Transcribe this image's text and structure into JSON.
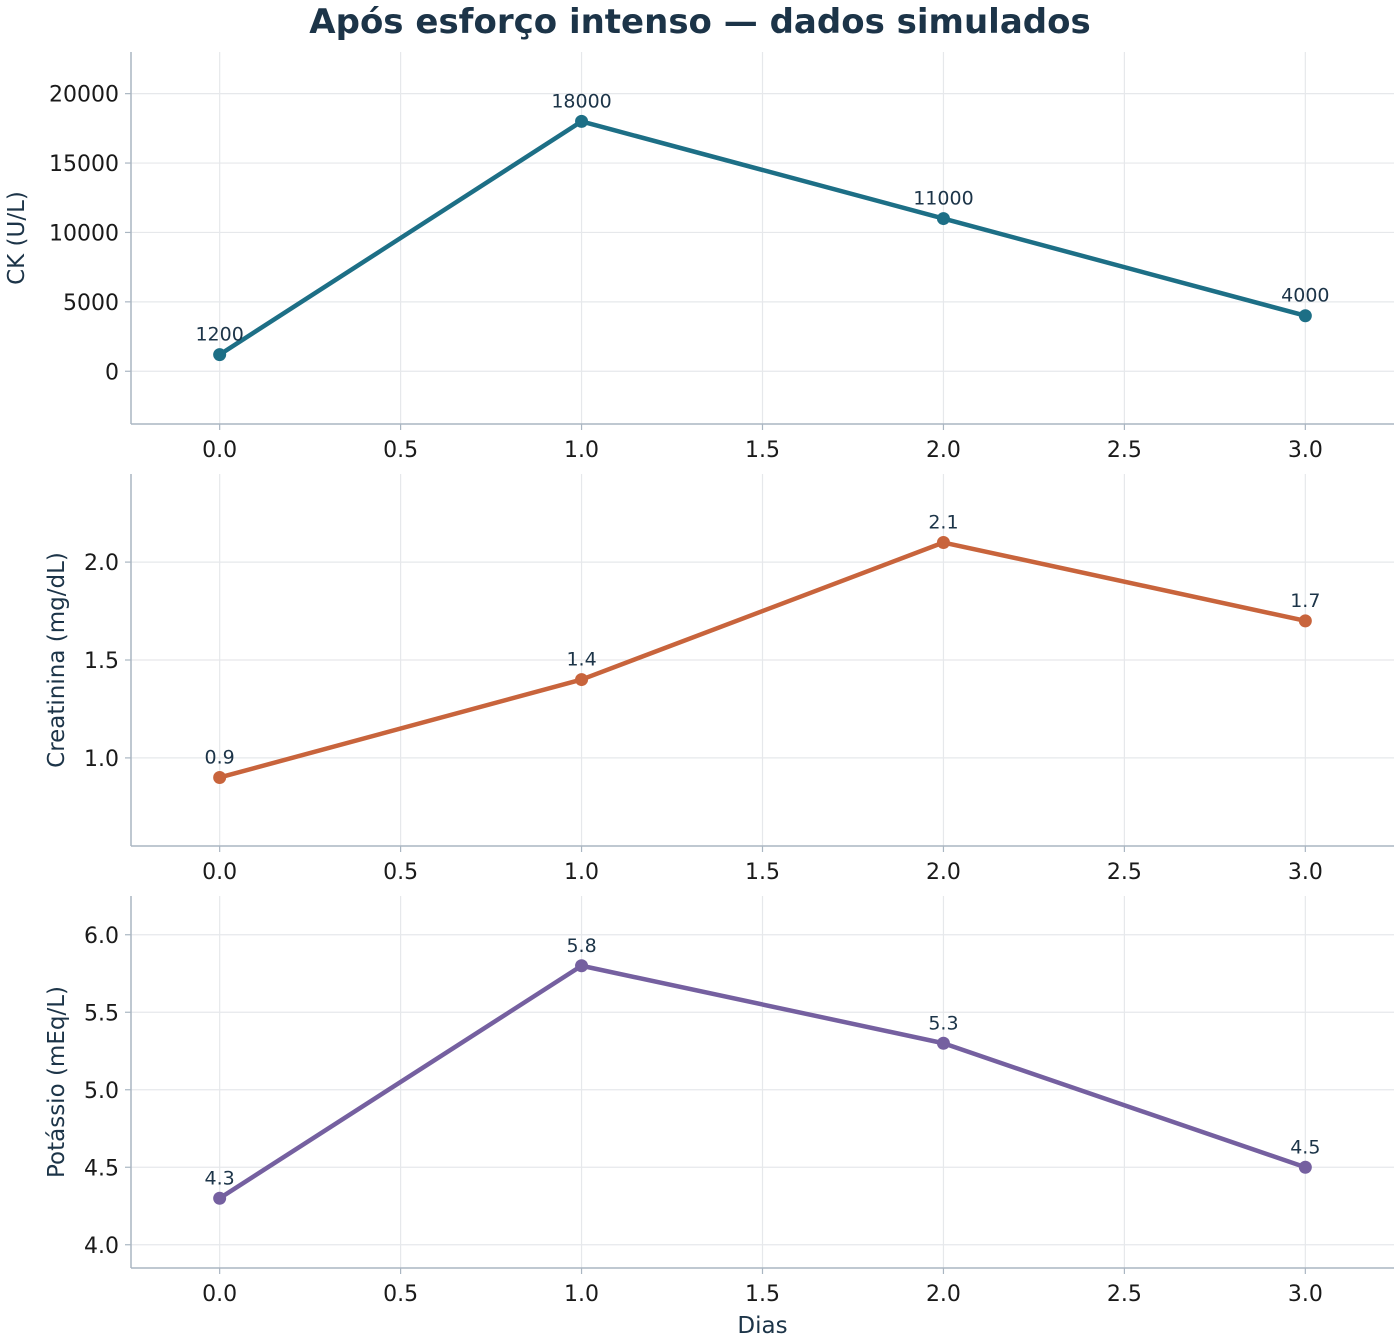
{
  "title": "Após esforço intenso — dados simulados",
  "chart_data": [
    {
      "type": "line",
      "title": "",
      "xlabel": "",
      "ylabel": "CK (U/L)",
      "x": [
        0,
        1,
        2,
        3
      ],
      "series": [
        {
          "values": [
            1200,
            18000,
            11000,
            4000
          ],
          "color": "#1d6f86"
        }
      ],
      "data_labels": [
        "1200",
        "18000",
        "11000",
        "4000"
      ],
      "xlim": [
        -0.245,
        3.245
      ],
      "ylim": [
        -3800,
        23000
      ],
      "xticks": [
        0,
        0.5,
        1,
        1.5,
        2,
        2.5,
        3
      ],
      "xtick_labels": [
        "0.0",
        "0.5",
        "1.0",
        "1.5",
        "2.0",
        "2.5",
        "3.0"
      ],
      "yticks": [
        0,
        5000,
        10000,
        15000,
        20000
      ],
      "ytick_labels": [
        "0",
        "5000",
        "10000",
        "15000",
        "20000"
      ],
      "grid": true
    },
    {
      "type": "line",
      "title": "",
      "xlabel": "",
      "ylabel": "Creatinina (mg/dL)",
      "x": [
        0,
        1,
        2,
        3
      ],
      "series": [
        {
          "values": [
            0.9,
            1.4,
            2.1,
            1.7
          ],
          "color": "#c8643c"
        }
      ],
      "data_labels": [
        "0.9",
        "1.4",
        "2.1",
        "1.7"
      ],
      "xlim": [
        -0.245,
        3.245
      ],
      "ylim": [
        0.55,
        2.45
      ],
      "xticks": [
        0,
        0.5,
        1,
        1.5,
        2,
        2.5,
        3
      ],
      "xtick_labels": [
        "0.0",
        "0.5",
        "1.0",
        "1.5",
        "2.0",
        "2.5",
        "3.0"
      ],
      "yticks": [
        1.0,
        1.5,
        2.0
      ],
      "ytick_labels": [
        "1.0",
        "1.5",
        "2.0"
      ],
      "grid": true
    },
    {
      "type": "line",
      "title": "",
      "xlabel": "Dias",
      "ylabel": "Potássio (mEq/L)",
      "x": [
        0,
        1,
        2,
        3
      ],
      "series": [
        {
          "values": [
            4.3,
            5.8,
            5.3,
            4.5
          ],
          "color": "#7560a0"
        }
      ],
      "data_labels": [
        "4.3",
        "5.8",
        "5.3",
        "4.5"
      ],
      "xlim": [
        -0.245,
        3.245
      ],
      "ylim": [
        3.85,
        6.25
      ],
      "xticks": [
        0,
        0.5,
        1,
        1.5,
        2,
        2.5,
        3
      ],
      "xtick_labels": [
        "0.0",
        "0.5",
        "1.0",
        "1.5",
        "2.0",
        "2.5",
        "3.0"
      ],
      "yticks": [
        4.0,
        4.5,
        5.0,
        5.5,
        6.0
      ],
      "ytick_labels": [
        "4.0",
        "4.5",
        "5.0",
        "5.5",
        "6.0"
      ],
      "grid": true
    }
  ]
}
